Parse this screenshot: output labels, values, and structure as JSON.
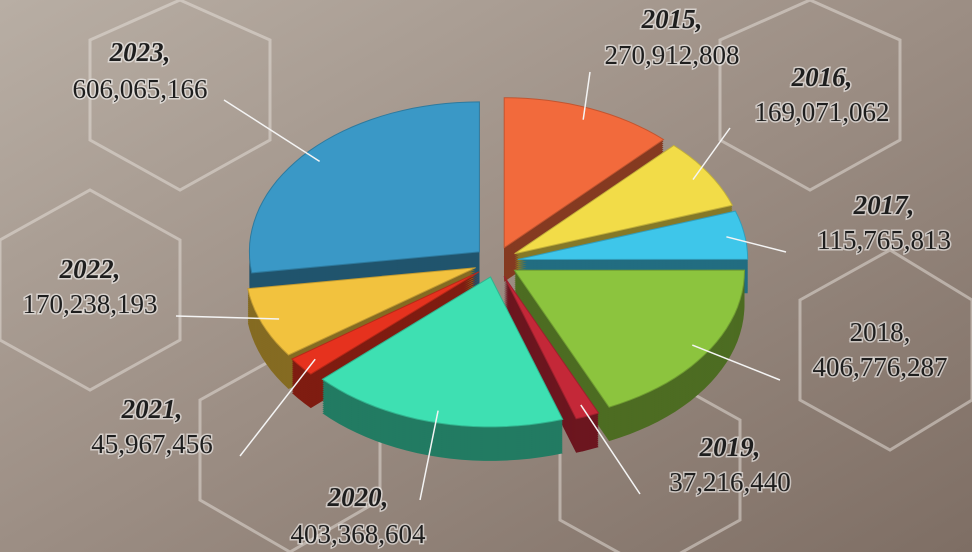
{
  "chart_data": {
    "type": "pie",
    "categories": [
      "2015,",
      "2016,",
      "2017,",
      "2018,",
      "2019,",
      "2020,",
      "2021,",
      "2022,",
      "2023,"
    ],
    "values": [
      270912808,
      169071062,
      115765813,
      406776287,
      37216440,
      403368604,
      45967456,
      170238193,
      606065166
    ],
    "value_labels": [
      "270,912,808",
      "169,071,062",
      "115,765,813",
      "406,776,287",
      "37,216,440",
      "403,368,604",
      "45,967,456",
      "170,238,193",
      "606,065,166"
    ],
    "colors": [
      "#f26a3c",
      "#f2dc48",
      "#3ec6ea",
      "#8cc43e",
      "#c42838",
      "#3ee0b2",
      "#e6321e",
      "#f2c23e",
      "#3a98c6"
    ]
  }
}
